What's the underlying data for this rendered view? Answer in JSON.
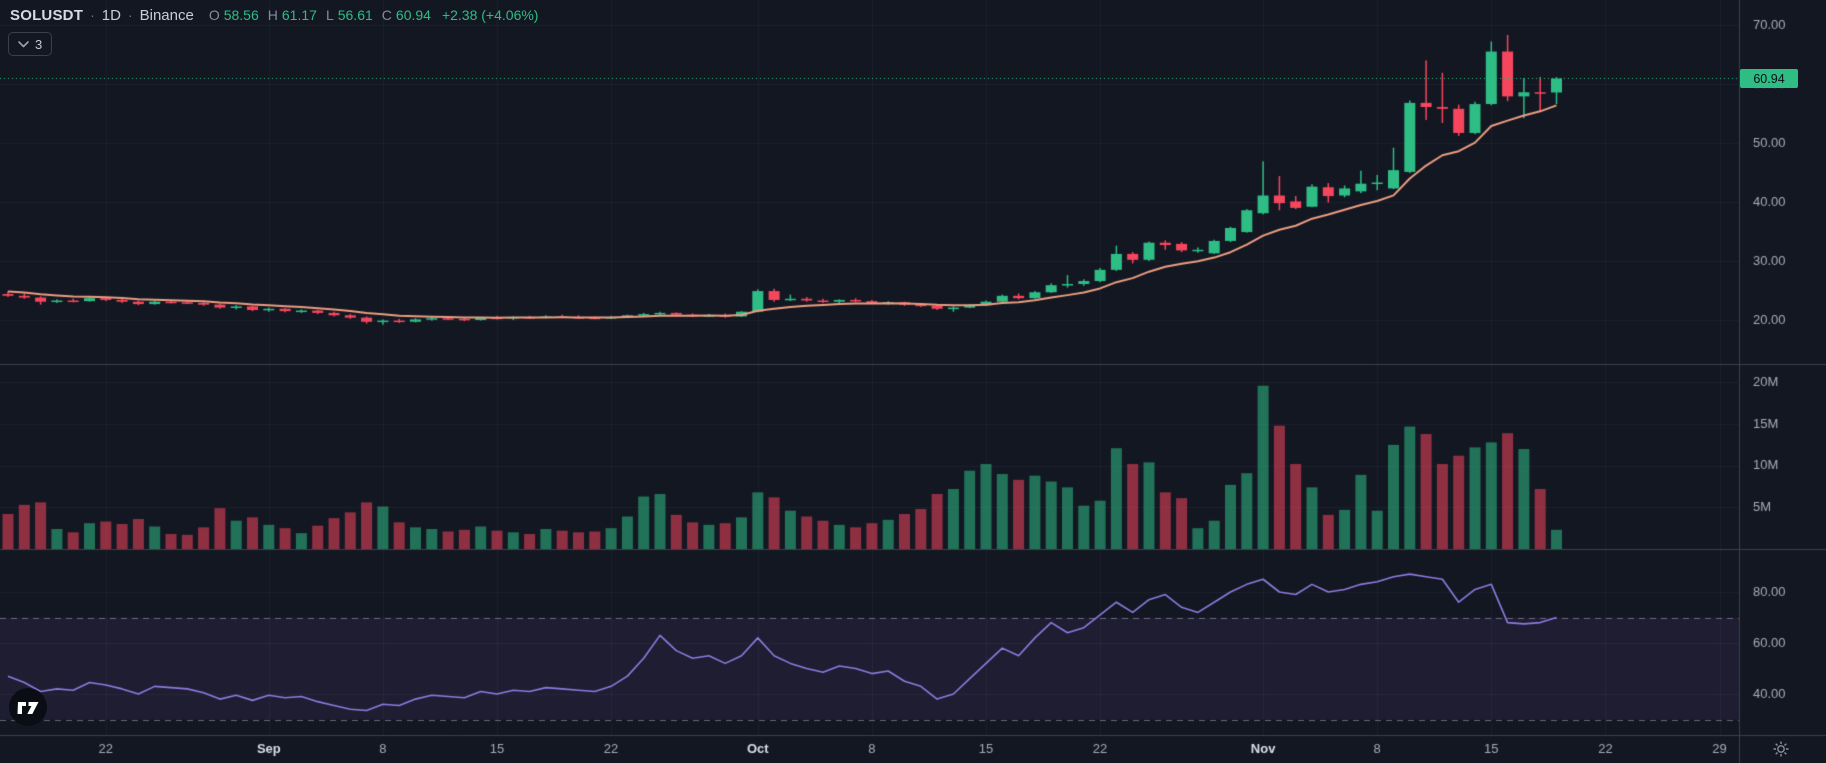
{
  "header": {
    "symbol": "SOLUSDT",
    "separator": "·",
    "interval": "1D",
    "exchange": "Binance",
    "ohlc": {
      "o_label": "O",
      "o": "58.56",
      "h_label": "H",
      "h": "61.17",
      "l_label": "L",
      "l": "56.61",
      "c_label": "C",
      "c": "60.94",
      "change": "+2.38 (+4.06%)"
    }
  },
  "indicators_badge": {
    "count": "3",
    "icon": "chevron-down-icon"
  },
  "footer_icons": {
    "logo": "tradingview-logo",
    "settings": "gear-icon"
  },
  "colors": {
    "background": "#131722",
    "grid": "rgba(197,205,224,0.055)",
    "separator": "#3a3f4d",
    "axis_text": "#a6abb8",
    "axis_text_major": "#dadee8",
    "up": "#2ebd85",
    "down": "#f6465d",
    "volume_up": "rgba(46,189,133,0.55)",
    "volume_down": "rgba(246,70,93,0.55)",
    "ma": "#eb9d80",
    "rsi": "#8f7ae0",
    "rsi_band": "rgba(126,87,194,0.10)",
    "rsi_dash": "rgba(154,160,175,0.6)",
    "price_line": "#2ebd85",
    "price_label_bg": "#2ebd85",
    "price_label_text": "#0b0e15"
  },
  "chart_data": {
    "type": "candlestick",
    "title": "SOLUSDT 1D Binance with volume and RSI panes",
    "last_price": 60.94,
    "price_line": {
      "value": 60.94,
      "label": "60.94"
    },
    "price_axis": {
      "ticks": [
        {
          "label": "70.00",
          "value": 70
        },
        {
          "label": "60.00",
          "value": 60
        },
        {
          "label": "50.00",
          "value": 50
        },
        {
          "label": "40.00",
          "value": 40
        },
        {
          "label": "30.00",
          "value": 30
        },
        {
          "label": "20.00",
          "value": 20
        }
      ],
      "min": 12.6,
      "max": 74.2
    },
    "volume_axis": {
      "ticks": [
        {
          "label": "20M",
          "value": 20
        },
        {
          "label": "15M",
          "value": 15
        },
        {
          "label": "10M",
          "value": 10
        },
        {
          "label": "5M",
          "value": 5
        }
      ]
    },
    "rsi_axis": {
      "ticks": [
        {
          "label": "80.00",
          "value": 80
        },
        {
          "label": "60.00",
          "value": 60
        },
        {
          "label": "40.00",
          "value": 40
        }
      ],
      "overbought": 70,
      "oversold": 30
    },
    "ma": {
      "type": "EMA",
      "period": 10,
      "seed": 25.0
    },
    "time_ticks": [
      {
        "label": "22",
        "index": 6,
        "major": false
      },
      {
        "label": "Sep",
        "index": 16,
        "major": true
      },
      {
        "label": "8",
        "index": 23,
        "major": false
      },
      {
        "label": "15",
        "index": 30,
        "major": false
      },
      {
        "label": "22",
        "index": 37,
        "major": false
      },
      {
        "label": "Oct",
        "index": 46,
        "major": true
      },
      {
        "label": "8",
        "index": 53,
        "major": false
      },
      {
        "label": "15",
        "index": 60,
        "major": false
      },
      {
        "label": "22",
        "index": 67,
        "major": false
      },
      {
        "label": "Nov",
        "index": 77,
        "major": true
      },
      {
        "label": "8",
        "index": 84,
        "major": false
      },
      {
        "label": "15",
        "index": 91,
        "major": false
      },
      {
        "label": "22",
        "index": 98,
        "major": false
      },
      {
        "label": "29",
        "index": 105,
        "major": false
      }
    ],
    "candles_fields": [
      "date",
      "open",
      "high",
      "low",
      "close",
      "volume_m",
      "rsi"
    ],
    "candles": [
      [
        "Aug 16",
        24.4,
        24.9,
        23.9,
        24.1,
        4.2,
        47
      ],
      [
        "Aug 17",
        24.1,
        24.5,
        23.6,
        23.8,
        5.3,
        44.5
      ],
      [
        "Aug 18",
        23.8,
        24.0,
        22.6,
        23.1,
        5.6,
        41
      ],
      [
        "Aug 19",
        23.1,
        23.5,
        22.9,
        23.3,
        2.4,
        42
      ],
      [
        "Aug 20",
        23.3,
        23.6,
        23.0,
        23.2,
        2.0,
        41.5
      ],
      [
        "Aug 21",
        23.2,
        23.9,
        23.1,
        23.7,
        3.1,
        44.5
      ],
      [
        "Aug 22",
        23.7,
        23.9,
        23.2,
        23.4,
        3.3,
        43.5
      ],
      [
        "Aug 23",
        23.4,
        23.7,
        22.9,
        23.1,
        3.0,
        42
      ],
      [
        "Aug 24",
        23.1,
        23.3,
        22.5,
        22.7,
        3.6,
        40
      ],
      [
        "Aug 25",
        22.7,
        23.3,
        22.6,
        23.1,
        2.7,
        43
      ],
      [
        "Aug 26",
        23.1,
        23.3,
        22.8,
        23.0,
        1.8,
        42.5
      ],
      [
        "Aug 27",
        23.0,
        23.2,
        22.7,
        22.9,
        1.7,
        42
      ],
      [
        "Aug 28",
        22.9,
        23.1,
        22.4,
        22.6,
        2.6,
        40.5
      ],
      [
        "Aug 29",
        22.6,
        22.8,
        21.9,
        22.1,
        4.9,
        38
      ],
      [
        "Aug 30",
        22.1,
        22.5,
        21.8,
        22.3,
        3.4,
        39.5
      ],
      [
        "Aug 31",
        22.3,
        22.4,
        21.5,
        21.7,
        3.8,
        37.5
      ],
      [
        "Sep 1",
        21.7,
        22.1,
        21.4,
        21.9,
        2.9,
        39.5
      ],
      [
        "Sep 2",
        21.9,
        22.0,
        21.3,
        21.5,
        2.5,
        38.5
      ],
      [
        "Sep 3",
        21.5,
        21.8,
        21.2,
        21.6,
        1.9,
        39
      ],
      [
        "Sep 4",
        21.6,
        21.7,
        21.0,
        21.2,
        2.8,
        37
      ],
      [
        "Sep 5",
        21.2,
        21.4,
        20.6,
        20.8,
        3.7,
        35.5
      ],
      [
        "Sep 6",
        20.8,
        21.0,
        20.2,
        20.4,
        4.4,
        34
      ],
      [
        "Sep 7",
        20.4,
        20.6,
        19.4,
        19.7,
        5.6,
        33.5
      ],
      [
        "Sep 8",
        19.7,
        20.1,
        19.2,
        19.9,
        5.1,
        36
      ],
      [
        "Sep 9",
        19.9,
        20.2,
        19.5,
        19.7,
        3.2,
        35.5
      ],
      [
        "Sep 10",
        19.7,
        20.3,
        19.6,
        20.1,
        2.6,
        38
      ],
      [
        "Sep 11",
        20.1,
        20.5,
        19.9,
        20.3,
        2.4,
        39.5
      ],
      [
        "Sep 12",
        20.3,
        20.6,
        20.0,
        20.2,
        2.1,
        39
      ],
      [
        "Sep 13",
        20.2,
        20.4,
        19.8,
        20.0,
        2.3,
        38.5
      ],
      [
        "Sep 14",
        20.0,
        20.5,
        19.9,
        20.4,
        2.7,
        41
      ],
      [
        "Sep 15",
        20.4,
        20.7,
        20.1,
        20.3,
        2.2,
        40
      ],
      [
        "Sep 16",
        20.3,
        20.6,
        20.0,
        20.5,
        2.0,
        41.5
      ],
      [
        "Sep 17",
        20.5,
        20.7,
        20.2,
        20.4,
        1.8,
        41
      ],
      [
        "Sep 18",
        20.4,
        20.8,
        20.3,
        20.6,
        2.4,
        42.5
      ],
      [
        "Sep 19",
        20.6,
        20.9,
        20.3,
        20.5,
        2.2,
        42
      ],
      [
        "Sep 20",
        20.5,
        20.8,
        20.2,
        20.4,
        2.0,
        41.5
      ],
      [
        "Sep 21",
        20.4,
        20.6,
        20.1,
        20.3,
        2.1,
        41
      ],
      [
        "Sep 22",
        20.3,
        20.7,
        20.2,
        20.5,
        2.5,
        43
      ],
      [
        "Sep 23",
        20.5,
        20.9,
        20.4,
        20.8,
        3.9,
        47
      ],
      [
        "Sep 24",
        20.8,
        21.2,
        20.6,
        21.0,
        6.3,
        54
      ],
      [
        "Sep 25",
        21.0,
        21.4,
        20.8,
        21.2,
        6.6,
        63
      ],
      [
        "Sep 26",
        21.2,
        21.3,
        20.7,
        20.9,
        4.1,
        57
      ],
      [
        "Sep 27",
        20.9,
        21.1,
        20.5,
        20.7,
        3.2,
        54
      ],
      [
        "Sep 28",
        20.7,
        21.0,
        20.5,
        20.8,
        2.9,
        55
      ],
      [
        "Sep 29",
        20.8,
        21.1,
        20.4,
        20.6,
        3.1,
        52
      ],
      [
        "Sep 30",
        20.6,
        21.5,
        20.5,
        21.4,
        3.8,
        55
      ],
      [
        "Oct 1",
        21.4,
        25.2,
        21.3,
        24.9,
        6.8,
        62
      ],
      [
        "Oct 2",
        24.9,
        25.3,
        23.1,
        23.4,
        6.2,
        55
      ],
      [
        "Oct 3",
        23.4,
        24.3,
        23.2,
        23.6,
        4.6,
        52
      ],
      [
        "Oct 4",
        23.6,
        23.9,
        23.1,
        23.3,
        3.9,
        50
      ],
      [
        "Oct 5",
        23.3,
        23.6,
        22.9,
        23.1,
        3.4,
        48.5
      ],
      [
        "Oct 6",
        23.1,
        23.5,
        22.9,
        23.4,
        2.9,
        51
      ],
      [
        "Oct 7",
        23.4,
        23.7,
        23.0,
        23.2,
        2.6,
        50
      ],
      [
        "Oct 8",
        23.2,
        23.4,
        22.7,
        22.9,
        3.1,
        48
      ],
      [
        "Oct 9",
        22.9,
        23.2,
        22.6,
        23.0,
        3.5,
        49
      ],
      [
        "Oct 10",
        23.0,
        23.1,
        22.4,
        22.6,
        4.2,
        45
      ],
      [
        "Oct 11",
        22.6,
        22.9,
        22.2,
        22.4,
        4.8,
        43
      ],
      [
        "Oct 12",
        22.4,
        22.6,
        21.7,
        21.9,
        6.6,
        38
      ],
      [
        "Oct 13",
        21.9,
        22.3,
        21.4,
        22.1,
        7.2,
        40
      ],
      [
        "Oct 14",
        22.1,
        22.7,
        22.0,
        22.5,
        9.4,
        46
      ],
      [
        "Oct 15",
        22.5,
        23.3,
        22.4,
        23.1,
        10.2,
        52
      ],
      [
        "Oct 16",
        23.1,
        24.3,
        23.0,
        24.1,
        9.0,
        58
      ],
      [
        "Oct 17",
        24.1,
        24.5,
        23.5,
        23.7,
        8.3,
        55
      ],
      [
        "Oct 18",
        23.7,
        24.9,
        23.6,
        24.7,
        8.8,
        62
      ],
      [
        "Oct 19",
        24.7,
        26.2,
        24.6,
        25.9,
        8.1,
        68
      ],
      [
        "Oct 20",
        25.9,
        27.6,
        25.5,
        26.1,
        7.4,
        64
      ],
      [
        "Oct 21",
        26.1,
        26.9,
        25.8,
        26.6,
        5.2,
        66
      ],
      [
        "Oct 22",
        26.6,
        28.8,
        26.4,
        28.5,
        5.8,
        71
      ],
      [
        "Oct 23",
        28.5,
        32.6,
        28.3,
        31.2,
        12.1,
        76
      ],
      [
        "Oct 24",
        31.2,
        31.5,
        29.6,
        30.2,
        10.2,
        72
      ],
      [
        "Oct 25",
        30.2,
        33.3,
        30.0,
        33.1,
        10.4,
        77
      ],
      [
        "Oct 26",
        33.1,
        33.5,
        31.9,
        32.7,
        6.8,
        79
      ],
      [
        "Oct 27",
        32.9,
        33.2,
        31.5,
        31.8,
        6.1,
        74
      ],
      [
        "Oct 28",
        31.8,
        32.3,
        31.4,
        31.9,
        2.5,
        72
      ],
      [
        "Oct 29",
        31.3,
        33.6,
        31.2,
        33.4,
        3.4,
        76
      ],
      [
        "Oct 30",
        33.4,
        35.8,
        33.2,
        35.6,
        7.7,
        80
      ],
      [
        "Oct 31",
        34.9,
        38.8,
        34.8,
        38.6,
        9.1,
        83
      ],
      [
        "Nov 1",
        38.1,
        46.9,
        37.9,
        41.1,
        19.6,
        85
      ],
      [
        "Nov 2",
        41.1,
        44.4,
        38.6,
        39.8,
        14.8,
        80
      ],
      [
        "Nov 3",
        40.1,
        41.0,
        38.8,
        39.0,
        10.2,
        79
      ],
      [
        "Nov 4",
        39.2,
        43.0,
        39.1,
        42.6,
        7.4,
        83
      ],
      [
        "Nov 5",
        42.5,
        43.2,
        39.9,
        41.0,
        4.1,
        80
      ],
      [
        "Nov 6",
        41.1,
        42.8,
        40.8,
        42.3,
        4.7,
        81
      ],
      [
        "Nov 7",
        41.8,
        45.3,
        41.5,
        43.1,
        8.9,
        83
      ],
      [
        "Nov 8",
        43.2,
        44.6,
        42.0,
        43.3,
        4.6,
        84
      ],
      [
        "Nov 9",
        42.3,
        49.2,
        42.2,
        45.4,
        12.5,
        86
      ],
      [
        "Nov 10",
        45.1,
        57.2,
        44.9,
        56.8,
        14.7,
        87
      ],
      [
        "Nov 11",
        56.8,
        64.0,
        53.9,
        56.1,
        13.8,
        86
      ],
      [
        "Nov 12",
        56.1,
        61.9,
        53.4,
        55.8,
        10.2,
        85
      ],
      [
        "Nov 13",
        55.8,
        56.5,
        51.2,
        51.7,
        11.2,
        76
      ],
      [
        "Nov 14",
        51.7,
        57.0,
        51.5,
        56.6,
        12.2,
        81
      ],
      [
        "Nov 15",
        56.6,
        67.2,
        56.4,
        65.5,
        12.8,
        83
      ],
      [
        "Nov 16",
        65.5,
        68.3,
        57.1,
        57.9,
        13.9,
        68
      ],
      [
        "Nov 17",
        57.9,
        61.0,
        54.2,
        58.6,
        12.0,
        67.5
      ],
      [
        "Nov 18",
        58.6,
        61.2,
        55.3,
        58.56,
        7.2,
        68
      ],
      [
        "Nov 19",
        58.56,
        61.17,
        56.61,
        60.94,
        2.3,
        70
      ]
    ]
  }
}
